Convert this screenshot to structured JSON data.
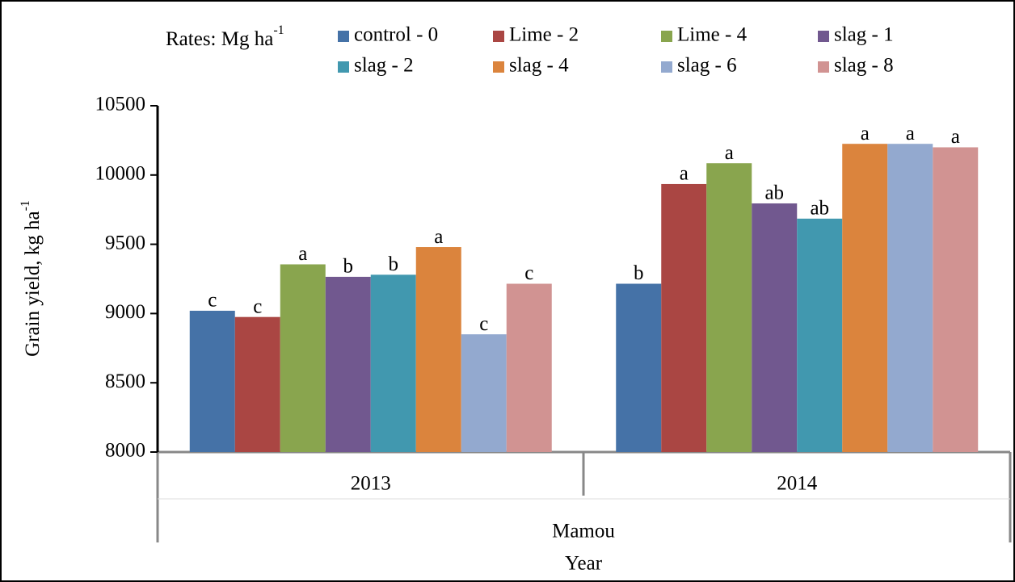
{
  "chart_data": {
    "type": "bar",
    "legend_title": {
      "text": "Rates: Mg ha",
      "sup": "-1"
    },
    "y_label": {
      "text": "Grain yield, kg ha",
      "sup": "-1"
    },
    "x_label": "Year",
    "group_label": "Mamou",
    "categories": [
      "2013",
      "2014"
    ],
    "ylim": [
      8000,
      10500
    ],
    "yticks": [
      8000,
      8500,
      9000,
      9500,
      10000,
      10500
    ],
    "series": [
      {
        "name": "control - 0",
        "color": "#4572a7",
        "values": [
          9020,
          9215
        ],
        "letters": [
          "c",
          "b"
        ]
      },
      {
        "name": "Lime - 2",
        "color": "#aa4643",
        "values": [
          8975,
          9935
        ],
        "letters": [
          "c",
          "a"
        ]
      },
      {
        "name": "Lime - 4",
        "color": "#89a54e",
        "values": [
          9355,
          10085
        ],
        "letters": [
          "a",
          "a"
        ]
      },
      {
        "name": "slag - 1",
        "color": "#71588f",
        "values": [
          9265,
          9795
        ],
        "letters": [
          "b",
          "ab"
        ]
      },
      {
        "name": "slag - 2",
        "color": "#4198af",
        "values": [
          9280,
          9685
        ],
        "letters": [
          "b",
          "ab"
        ]
      },
      {
        "name": "slag - 4",
        "color": "#db843d",
        "values": [
          9480,
          10225
        ],
        "letters": [
          "a",
          "a"
        ]
      },
      {
        "name": "slag - 6",
        "color": "#93a9cf",
        "values": [
          8850,
          10225
        ],
        "letters": [
          "c",
          "a"
        ]
      },
      {
        "name": "slag - 8",
        "color": "#d19392",
        "values": [
          9215,
          10200
        ],
        "letters": [
          "c",
          "a"
        ]
      }
    ]
  }
}
